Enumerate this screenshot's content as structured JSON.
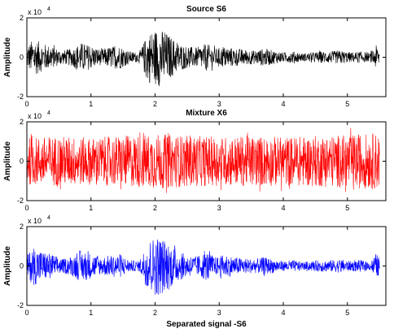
{
  "chart_data": [
    {
      "type": "line",
      "title": "Source S6",
      "ylabel": "Amplitude",
      "xlabel": "",
      "y_exponent_label": "x 10",
      "y_exponent_power": "4",
      "xlim": [
        0,
        5.6
      ],
      "ylim": [
        -2,
        2
      ],
      "xticks": [
        "0",
        "1",
        "2",
        "3",
        "4",
        "5"
      ],
      "yticks": [
        "-2",
        "0",
        "2"
      ],
      "color": "#000000",
      "envelope": [
        {
          "x": 0.0,
          "a": 0.55
        },
        {
          "x": 0.1,
          "a": 0.95
        },
        {
          "x": 0.25,
          "a": 0.7
        },
        {
          "x": 0.4,
          "a": 0.55
        },
        {
          "x": 0.55,
          "a": 0.35
        },
        {
          "x": 0.7,
          "a": 0.45
        },
        {
          "x": 0.85,
          "a": 0.75
        },
        {
          "x": 1.0,
          "a": 0.6
        },
        {
          "x": 1.15,
          "a": 0.4
        },
        {
          "x": 1.3,
          "a": 0.55
        },
        {
          "x": 1.45,
          "a": 0.6
        },
        {
          "x": 1.6,
          "a": 0.3
        },
        {
          "x": 1.75,
          "a": 0.25
        },
        {
          "x": 1.9,
          "a": 1.3
        },
        {
          "x": 2.05,
          "a": 1.5
        },
        {
          "x": 2.2,
          "a": 1.2
        },
        {
          "x": 2.35,
          "a": 0.75
        },
        {
          "x": 2.5,
          "a": 0.55
        },
        {
          "x": 2.65,
          "a": 0.5
        },
        {
          "x": 2.8,
          "a": 0.7
        },
        {
          "x": 2.95,
          "a": 0.45
        },
        {
          "x": 3.1,
          "a": 0.55
        },
        {
          "x": 3.25,
          "a": 0.45
        },
        {
          "x": 3.4,
          "a": 0.4
        },
        {
          "x": 3.55,
          "a": 0.35
        },
        {
          "x": 3.7,
          "a": 0.45
        },
        {
          "x": 3.85,
          "a": 0.35
        },
        {
          "x": 4.0,
          "a": 0.25
        },
        {
          "x": 4.15,
          "a": 0.3
        },
        {
          "x": 4.3,
          "a": 0.2
        },
        {
          "x": 4.45,
          "a": 0.25
        },
        {
          "x": 4.6,
          "a": 0.3
        },
        {
          "x": 4.75,
          "a": 0.3
        },
        {
          "x": 4.9,
          "a": 0.35
        },
        {
          "x": 5.05,
          "a": 0.25
        },
        {
          "x": 5.2,
          "a": 0.3
        },
        {
          "x": 5.35,
          "a": 0.2
        },
        {
          "x": 5.45,
          "a": 0.6
        },
        {
          "x": 5.5,
          "a": 0.4
        }
      ]
    },
    {
      "type": "line",
      "title": "Mixture X6",
      "ylabel": "Amplitude",
      "xlabel": "",
      "y_exponent_label": "x 10",
      "y_exponent_power": "4",
      "xlim": [
        0,
        5.6
      ],
      "ylim": [
        -2,
        2
      ],
      "xticks": [
        "0",
        "1",
        "2",
        "3",
        "4",
        "5"
      ],
      "yticks": [
        "-2",
        "0",
        "2"
      ],
      "color": "#ff0000",
      "envelope": [
        {
          "x": 0.0,
          "a": 1.2
        },
        {
          "x": 0.5,
          "a": 1.3
        },
        {
          "x": 1.0,
          "a": 1.2
        },
        {
          "x": 1.5,
          "a": 1.3
        },
        {
          "x": 2.0,
          "a": 1.4
        },
        {
          "x": 2.5,
          "a": 1.3
        },
        {
          "x": 3.0,
          "a": 1.25
        },
        {
          "x": 3.5,
          "a": 1.3
        },
        {
          "x": 4.0,
          "a": 1.25
        },
        {
          "x": 4.5,
          "a": 1.3
        },
        {
          "x": 5.0,
          "a": 1.35
        },
        {
          "x": 5.5,
          "a": 1.45
        }
      ]
    },
    {
      "type": "line",
      "title": "",
      "ylabel": "Amplitude",
      "xlabel": "Separated signal -S6",
      "y_exponent_label": "x 10",
      "y_exponent_power": "4",
      "xlim": [
        0,
        5.6
      ],
      "ylim": [
        -2,
        2
      ],
      "xticks": [
        "0",
        "1",
        "2",
        "3",
        "4",
        "5"
      ],
      "yticks": [
        "-2",
        "0",
        "2"
      ],
      "color": "#0000ff",
      "envelope": [
        {
          "x": 0.0,
          "a": 0.55
        },
        {
          "x": 0.1,
          "a": 1.0
        },
        {
          "x": 0.25,
          "a": 0.75
        },
        {
          "x": 0.4,
          "a": 0.6
        },
        {
          "x": 0.55,
          "a": 0.35
        },
        {
          "x": 0.7,
          "a": 0.5
        },
        {
          "x": 0.85,
          "a": 0.8
        },
        {
          "x": 1.0,
          "a": 0.65
        },
        {
          "x": 1.15,
          "a": 0.45
        },
        {
          "x": 1.3,
          "a": 0.55
        },
        {
          "x": 1.45,
          "a": 0.6
        },
        {
          "x": 1.6,
          "a": 0.3
        },
        {
          "x": 1.75,
          "a": 0.25
        },
        {
          "x": 1.9,
          "a": 1.35
        },
        {
          "x": 2.05,
          "a": 1.55
        },
        {
          "x": 2.2,
          "a": 1.25
        },
        {
          "x": 2.35,
          "a": 0.8
        },
        {
          "x": 2.5,
          "a": 0.55
        },
        {
          "x": 2.65,
          "a": 0.5
        },
        {
          "x": 2.8,
          "a": 0.75
        },
        {
          "x": 2.95,
          "a": 0.45
        },
        {
          "x": 3.1,
          "a": 0.6
        },
        {
          "x": 3.25,
          "a": 0.45
        },
        {
          "x": 3.4,
          "a": 0.4
        },
        {
          "x": 3.55,
          "a": 0.35
        },
        {
          "x": 3.7,
          "a": 0.45
        },
        {
          "x": 3.85,
          "a": 0.35
        },
        {
          "x": 4.0,
          "a": 0.25
        },
        {
          "x": 4.15,
          "a": 0.3
        },
        {
          "x": 4.3,
          "a": 0.2
        },
        {
          "x": 4.45,
          "a": 0.25
        },
        {
          "x": 4.6,
          "a": 0.3
        },
        {
          "x": 4.75,
          "a": 0.3
        },
        {
          "x": 4.9,
          "a": 0.35
        },
        {
          "x": 5.05,
          "a": 0.25
        },
        {
          "x": 5.2,
          "a": 0.3
        },
        {
          "x": 5.35,
          "a": 0.2
        },
        {
          "x": 5.45,
          "a": 0.65
        },
        {
          "x": 5.5,
          "a": 0.4
        }
      ]
    }
  ]
}
